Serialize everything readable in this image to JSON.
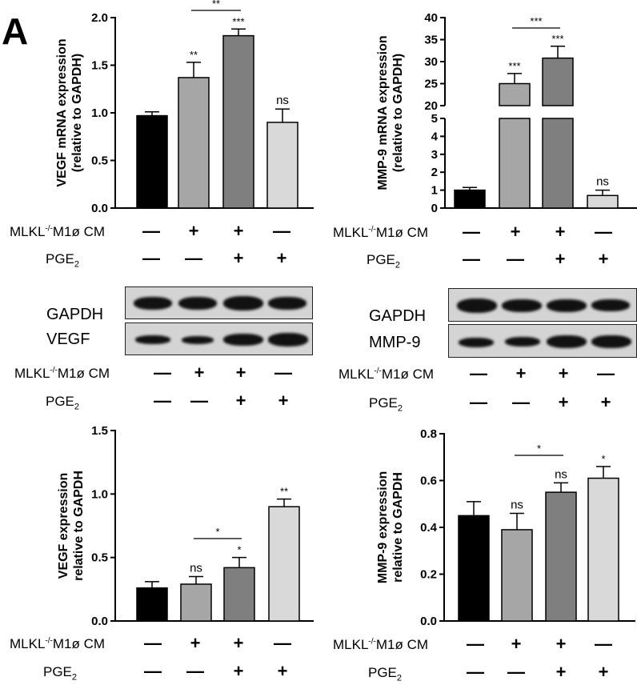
{
  "panel_label": "A",
  "conditions": {
    "row1_label": "MLKL",
    "row1_sup": "-/-",
    "row1_suffix": "M1ø CM",
    "row2_label": "PGE",
    "row2_sub": "2",
    "row1_signs": [
      "—",
      "+",
      "+",
      "—"
    ],
    "row2_signs": [
      "—",
      "—",
      "+",
      "+"
    ]
  },
  "blots": [
    {
      "rows": [
        {
          "label": "GAPDH"
        },
        {
          "label": "VEGF"
        }
      ]
    },
    {
      "rows": [
        {
          "label": "GAPDH"
        },
        {
          "label": "MMP-9"
        }
      ]
    }
  ],
  "colors": [
    "#000000",
    "#a6a6a6",
    "#7f7f7f",
    "#d9d9d9"
  ],
  "chart_data": [
    {
      "type": "bar",
      "ylabel": "VEGF mRNA expression",
      "ylabel2": "(relative to GAPDH)",
      "ylim": [
        0,
        2.0
      ],
      "yticks": [
        "0.0",
        "0.5",
        "1.0",
        "1.5",
        "2.0"
      ],
      "values": [
        0.97,
        1.37,
        1.81,
        0.9
      ],
      "errors": [
        0.04,
        0.16,
        0.07,
        0.14
      ],
      "significance": [
        "",
        "**",
        "***",
        "ns"
      ],
      "bracket": "**"
    },
    {
      "type": "bar",
      "ylabel": "MMP-9 mRNA expression",
      "ylabel2": "(relative to GAPDH)",
      "broken_axis": true,
      "ylim_lower": [
        0,
        5
      ],
      "ylim_upper": [
        20,
        40
      ],
      "yticks_lower": [
        "0",
        "1",
        "2",
        "3",
        "4",
        "5"
      ],
      "yticks_upper": [
        "20",
        "25",
        "30",
        "35",
        "40"
      ],
      "values": [
        1.0,
        25.0,
        30.8,
        0.7
      ],
      "errors": [
        0.15,
        2.3,
        2.7,
        0.3
      ],
      "significance": [
        "",
        "***",
        "***",
        "ns"
      ],
      "bracket": "***"
    },
    {
      "type": "bar",
      "ylabel": "VEGF  expression",
      "ylabel2": "relative to GAPDH",
      "ylim": [
        0,
        1.5
      ],
      "yticks": [
        "0.0",
        "0.5",
        "1.0",
        "1.5"
      ],
      "values": [
        0.26,
        0.29,
        0.42,
        0.9
      ],
      "errors": [
        0.05,
        0.06,
        0.08,
        0.06
      ],
      "significance": [
        "",
        "ns",
        "*",
        "**"
      ],
      "bracket": "*"
    },
    {
      "type": "bar",
      "ylabel": "MMP-9 expression",
      "ylabel2": "relative to GAPDH",
      "ylim": [
        0,
        0.8
      ],
      "yticks": [
        "0.0",
        "0.2",
        "0.4",
        "0.6",
        "0.8"
      ],
      "values": [
        0.45,
        0.39,
        0.55,
        0.61
      ],
      "errors": [
        0.06,
        0.07,
        0.04,
        0.05
      ],
      "significance": [
        "",
        "ns",
        "ns",
        "*"
      ],
      "bracket": "*"
    }
  ]
}
